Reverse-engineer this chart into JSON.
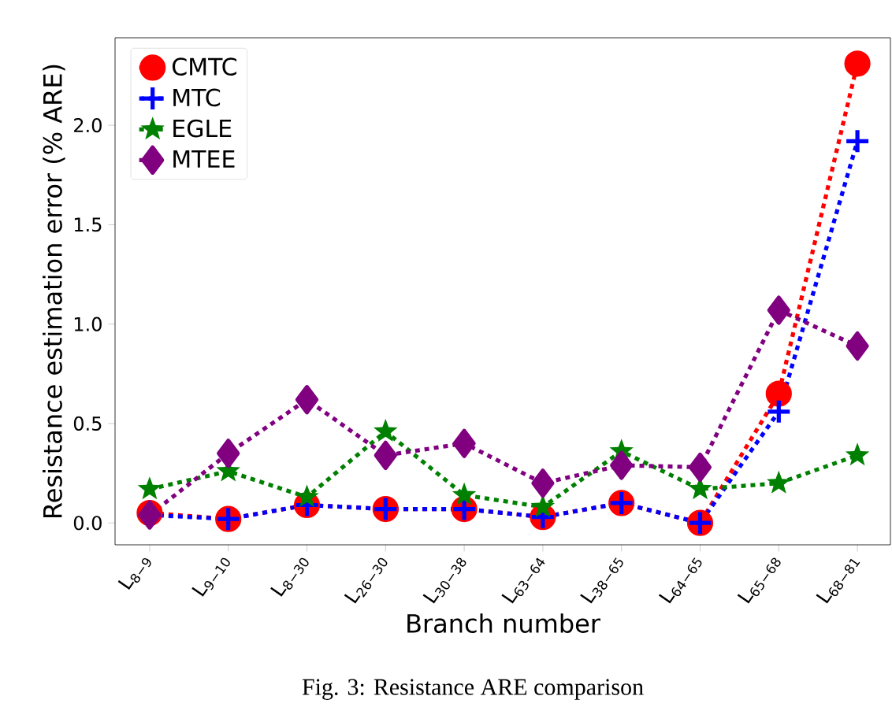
{
  "chart_data": {
    "type": "line",
    "xlabel": "Branch number",
    "ylabel": "Resistance estimation error (% ARE)",
    "categories": [
      "L$_{8−9}$",
      "L$_{9−10}$",
      "L$_{8−30}$",
      "L$_{26−30}$",
      "L$_{30−38}$",
      "L$_{63−64}$",
      "L$_{38−65}$",
      "L$_{64−65}$",
      "L$_{65−68}$",
      "L$_{68−81}$"
    ],
    "ylim": [
      -0.11,
      2.44
    ],
    "yticks": [
      {
        "value": 0,
        "label": "0.0"
      },
      {
        "value": 0.5,
        "label": "0.5"
      },
      {
        "value": 1,
        "label": "1.0"
      },
      {
        "value": 1.5,
        "label": "1.5"
      },
      {
        "value": 2,
        "label": "2.0"
      }
    ],
    "line_style": "dotted",
    "legend": "top left",
    "series": [
      {
        "name": "CMTC",
        "color": "#ff0000",
        "marker": "circle",
        "values": [
          0.05,
          0.02,
          0.09,
          0.07,
          0.07,
          0.03,
          0.1,
          0.0,
          0.65,
          2.31
        ]
      },
      {
        "name": "MTC",
        "color": "#0000ff",
        "marker": "cross",
        "values": [
          0.04,
          0.02,
          0.09,
          0.07,
          0.07,
          0.03,
          0.1,
          0.0,
          0.56,
          1.92
        ]
      },
      {
        "name": "EGLE",
        "color": "#008000",
        "marker": "star",
        "values": [
          0.17,
          0.26,
          0.13,
          0.46,
          0.14,
          0.08,
          0.36,
          0.17,
          0.2,
          0.34
        ]
      },
      {
        "name": "MTEE",
        "color": "#800080",
        "marker": "diamond",
        "values": [
          0.04,
          0.35,
          0.62,
          0.34,
          0.4,
          0.2,
          0.29,
          0.28,
          1.07,
          0.89
        ]
      }
    ],
    "annotations": [
      "Fig. 3: Resistance ARE comparison"
    ]
  }
}
